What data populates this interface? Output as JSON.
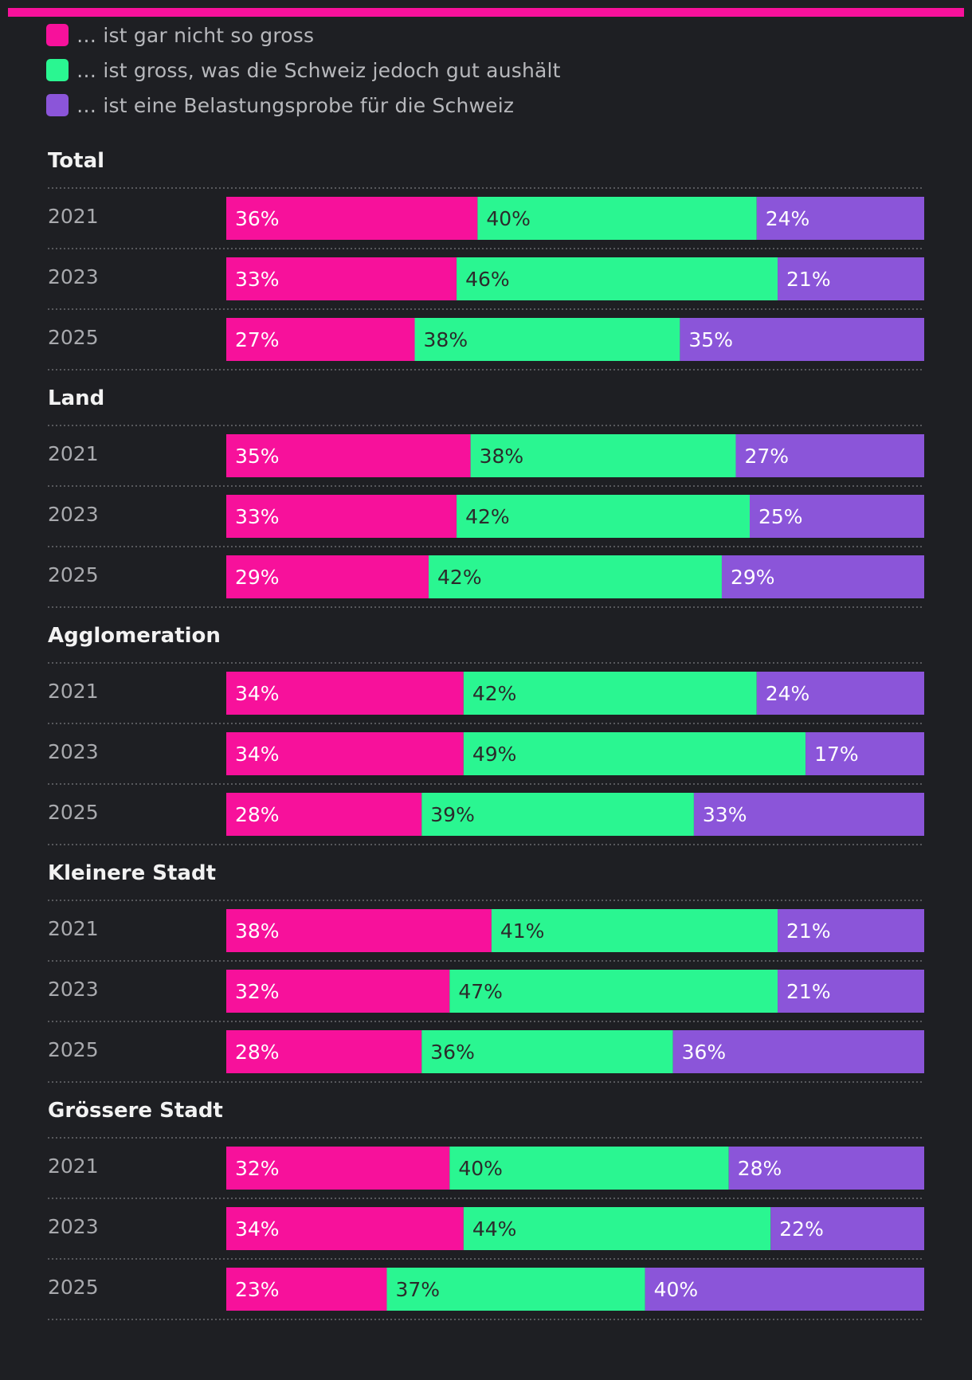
{
  "colors": {
    "background": "#1e1f23",
    "accent_line": "#f7119b",
    "series": [
      "#f7119b",
      "#2af691",
      "#8b55d9"
    ],
    "value_label_dark": "#2b2b2b",
    "value_label_light": "#ffffff",
    "year_label": "#a9aaae",
    "group_title": "#f2f2f2",
    "divider": "#6a6b70"
  },
  "legend": [
    {
      "label": "… ist gar nicht so gross",
      "color": "#f7119b"
    },
    {
      "label": "… ist gross, was die Schweiz jedoch gut aushält",
      "color": "#2af691"
    },
    {
      "label": "… ist eine Belastungsprobe für die Schweiz",
      "color": "#8b55d9"
    }
  ],
  "chart_data": {
    "type": "bar",
    "orientation": "horizontal",
    "stacked": true,
    "normalized_100": true,
    "unit": "%",
    "xlim": [
      0,
      100
    ],
    "series_names": [
      "… ist gar nicht so gross",
      "… ist gross, was die Schweiz jedoch gut aushält",
      "… ist eine Belastungsprobe für die Schweiz"
    ],
    "groups": [
      {
        "title": "Total",
        "rows": [
          {
            "year": "2021",
            "values": [
              36,
              40,
              24
            ]
          },
          {
            "year": "2023",
            "values": [
              33,
              46,
              21
            ]
          },
          {
            "year": "2025",
            "values": [
              27,
              38,
              35
            ]
          }
        ]
      },
      {
        "title": "Land",
        "rows": [
          {
            "year": "2021",
            "values": [
              35,
              38,
              27
            ]
          },
          {
            "year": "2023",
            "values": [
              33,
              42,
              25
            ]
          },
          {
            "year": "2025",
            "values": [
              29,
              42,
              29
            ]
          }
        ]
      },
      {
        "title": "Agglomeration",
        "rows": [
          {
            "year": "2021",
            "values": [
              34,
              42,
              24
            ]
          },
          {
            "year": "2023",
            "values": [
              34,
              49,
              17
            ]
          },
          {
            "year": "2025",
            "values": [
              28,
              39,
              33
            ]
          }
        ]
      },
      {
        "title": "Kleinere Stadt",
        "rows": [
          {
            "year": "2021",
            "values": [
              38,
              41,
              21
            ]
          },
          {
            "year": "2023",
            "values": [
              32,
              47,
              21
            ]
          },
          {
            "year": "2025",
            "values": [
              28,
              36,
              36
            ]
          }
        ]
      },
      {
        "title": "Grössere Stadt",
        "rows": [
          {
            "year": "2021",
            "values": [
              32,
              40,
              28
            ]
          },
          {
            "year": "2023",
            "values": [
              34,
              44,
              22
            ]
          },
          {
            "year": "2025",
            "values": [
              23,
              37,
              40
            ]
          }
        ]
      }
    ]
  }
}
